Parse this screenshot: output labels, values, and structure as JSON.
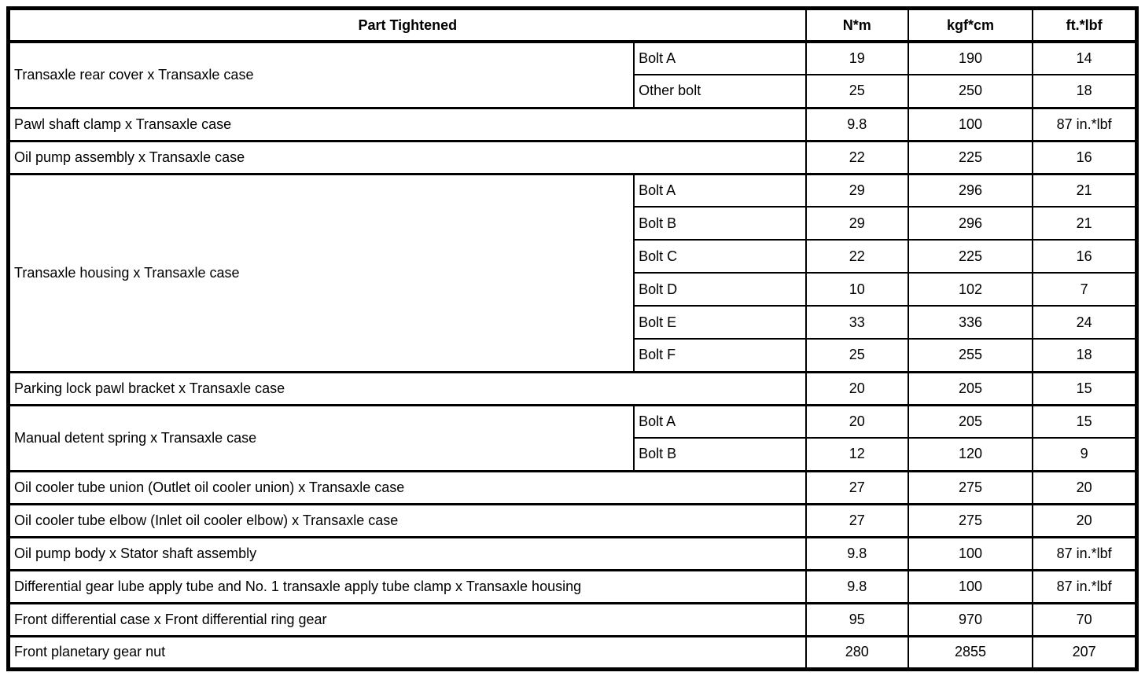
{
  "table": {
    "header": {
      "part_tightened": "Part Tightened",
      "nm": "N*m",
      "kgfcm": "kgf*cm",
      "ftlbf": "ft.*lbf"
    },
    "rows": [
      {
        "part": "Transaxle rear cover x Transaxle case",
        "subs": [
          {
            "label": "Bolt A",
            "nm": "19",
            "kgfcm": "190",
            "ftlbf": "14"
          },
          {
            "label": "Other bolt",
            "nm": "25",
            "kgfcm": "250",
            "ftlbf": "18"
          }
        ]
      },
      {
        "part": "Pawl shaft clamp x Transaxle case",
        "nm": "9.8",
        "kgfcm": "100",
        "ftlbf": "87 in.*lbf"
      },
      {
        "part": "Oil pump assembly x Transaxle case",
        "nm": "22",
        "kgfcm": "225",
        "ftlbf": "16"
      },
      {
        "part": "Transaxle housing x Transaxle case",
        "subs": [
          {
            "label": "Bolt A",
            "nm": "29",
            "kgfcm": "296",
            "ftlbf": "21"
          },
          {
            "label": "Bolt B",
            "nm": "29",
            "kgfcm": "296",
            "ftlbf": "21"
          },
          {
            "label": "Bolt C",
            "nm": "22",
            "kgfcm": "225",
            "ftlbf": "16"
          },
          {
            "label": "Bolt D",
            "nm": "10",
            "kgfcm": "102",
            "ftlbf": "7"
          },
          {
            "label": "Bolt E",
            "nm": "33",
            "kgfcm": "336",
            "ftlbf": "24"
          },
          {
            "label": "Bolt F",
            "nm": "25",
            "kgfcm": "255",
            "ftlbf": "18"
          }
        ]
      },
      {
        "part": "Parking lock pawl bracket x Transaxle case",
        "nm": "20",
        "kgfcm": "205",
        "ftlbf": "15"
      },
      {
        "part": "Manual detent spring x Transaxle case",
        "subs": [
          {
            "label": "Bolt A",
            "nm": "20",
            "kgfcm": "205",
            "ftlbf": "15"
          },
          {
            "label": "Bolt B",
            "nm": "12",
            "kgfcm": "120",
            "ftlbf": "9"
          }
        ]
      },
      {
        "part": "Oil cooler tube union (Outlet oil cooler union) x Transaxle case",
        "nm": "27",
        "kgfcm": "275",
        "ftlbf": "20"
      },
      {
        "part": "Oil cooler tube elbow (Inlet oil cooler elbow) x Transaxle case",
        "nm": "27",
        "kgfcm": "275",
        "ftlbf": "20"
      },
      {
        "part": "Oil pump body x Stator shaft assembly",
        "nm": "9.8",
        "kgfcm": "100",
        "ftlbf": "87 in.*lbf"
      },
      {
        "part": "Differential gear lube apply tube and No. 1 transaxle apply tube clamp x Transaxle housing",
        "nm": "9.8",
        "kgfcm": "100",
        "ftlbf": "87 in.*lbf"
      },
      {
        "part": "Front differential case x Front differential ring gear",
        "nm": "95",
        "kgfcm": "970",
        "ftlbf": "70"
      },
      {
        "part": "Front planetary gear nut",
        "nm": "280",
        "kgfcm": "2855",
        "ftlbf": "207"
      }
    ]
  }
}
